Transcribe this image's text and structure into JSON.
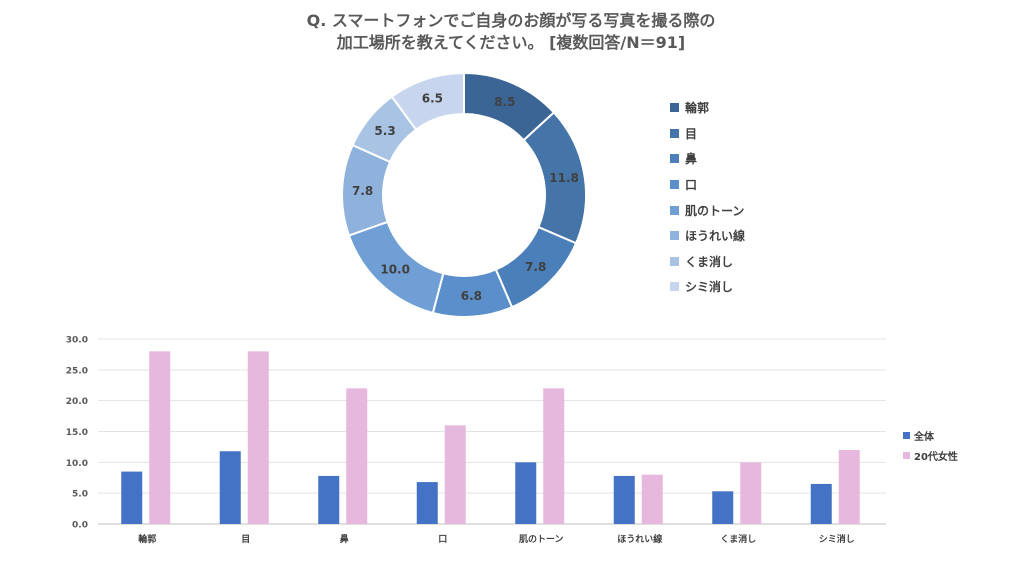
{
  "title": {
    "line1": "Q. スマートフォンでご自身のお顔が写る写真を撮る際の",
    "line2": "加工場所を教えてください。 [複数回答/N＝91]"
  },
  "chart_data": [
    {
      "type": "pie",
      "categories": [
        "輪郭",
        "目",
        "鼻",
        "口",
        "肌のトーン",
        "ほうれい線",
        "くま消し",
        "シミ消し"
      ],
      "values": [
        8.5,
        11.8,
        7.8,
        6.8,
        10.0,
        7.8,
        5.3,
        6.5
      ],
      "value_labels": [
        "8.5",
        "11.8",
        "7.8",
        "6.8",
        "10.0",
        "7.8",
        "5.3",
        "6.5"
      ],
      "colors": [
        "#3b6595",
        "#4474a8",
        "#4a7fba",
        "#5a8fcb",
        "#6f9fd5",
        "#8fb2dd",
        "#a9c3e5",
        "#c7d6ee"
      ],
      "legend_position": "right"
    },
    {
      "type": "bar",
      "categories": [
        "輪郭",
        "目",
        "鼻",
        "口",
        "肌のトーン",
        "ほうれい線",
        "くま消し",
        "シミ消し"
      ],
      "series": [
        {
          "name": "全体",
          "values": [
            8.5,
            11.8,
            7.8,
            6.8,
            10.0,
            7.8,
            5.3,
            6.5
          ],
          "color": "#4472c4"
        },
        {
          "name": "20代女性",
          "values": [
            28,
            28,
            22,
            16,
            22,
            8,
            10,
            12
          ],
          "color": "#e6b8de"
        }
      ],
      "ylim": [
        0,
        30
      ],
      "yticks": [
        "0.0",
        "5.0",
        "10.0",
        "15.0",
        "20.0",
        "25.0",
        "30.0"
      ],
      "grid": true,
      "legend_position": "right"
    }
  ]
}
